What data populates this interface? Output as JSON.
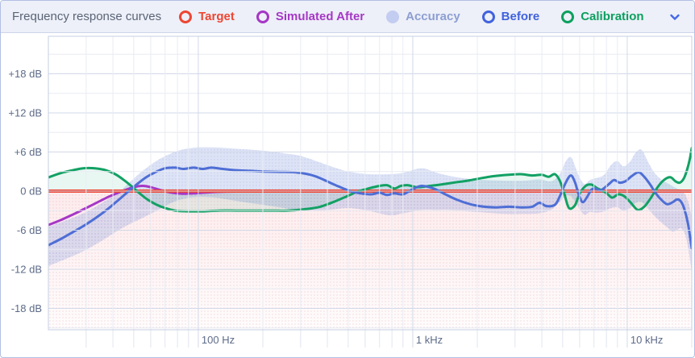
{
  "header": {
    "title": "Frequency response curves",
    "legend": {
      "items": [
        {
          "id": "target",
          "label": "Target",
          "color": "#ee4533",
          "marker": "ring"
        },
        {
          "id": "simulated-after",
          "label": "Simulated After",
          "color": "#a637c6",
          "marker": "ring"
        },
        {
          "id": "accuracy",
          "label": "Accuracy",
          "color": "#c3cdf1",
          "text_color": "#8d9ed2",
          "marker": "dot"
        },
        {
          "id": "before",
          "label": "Before",
          "color": "#4162de",
          "marker": "ring"
        },
        {
          "id": "calibration",
          "label": "Calibration",
          "color": "#0ca05f",
          "marker": "ring"
        }
      ]
    },
    "collapse_icon": "chevron-down",
    "collapse_icon_color": "#4468e8"
  },
  "chart_data": {
    "type": "line",
    "title": "Frequency response curves",
    "x_axis": {
      "scale": "log",
      "unit": "Hz",
      "min": 20,
      "max": 20000,
      "ticks": [
        {
          "hz": 100,
          "label": "100 Hz"
        },
        {
          "hz": 1000,
          "label": "1 kHz"
        },
        {
          "hz": 10000,
          "label": "10 kHz"
        }
      ],
      "grid_hz": [
        30,
        40,
        50,
        60,
        70,
        80,
        90,
        100,
        200,
        300,
        400,
        500,
        600,
        700,
        800,
        900,
        1000,
        2000,
        3000,
        4000,
        5000,
        6000,
        7000,
        8000,
        9000,
        10000,
        20000
      ]
    },
    "y_axis": {
      "unit": "dB",
      "min": -21.3,
      "max": 23.8,
      "grid_step_db": 3,
      "ticks": [
        {
          "db": 18,
          "label": "+18 dB"
        },
        {
          "db": 12,
          "label": "+12 dB"
        },
        {
          "db": 6,
          "label": "+6 dB"
        },
        {
          "db": 0,
          "label": "0 dB"
        },
        {
          "db": -6,
          "label": "-6 dB"
        },
        {
          "db": -12,
          "label": "-12 dB"
        },
        {
          "db": -18,
          "label": "-18 dB"
        }
      ]
    },
    "band": {
      "name": "Accuracy",
      "fill": "rgba(124,146,221,0.26)",
      "points": [
        [
          20,
          -11.5,
          -5.5
        ],
        [
          25,
          -10.2,
          -4.3
        ],
        [
          30,
          -9.0,
          -3.2
        ],
        [
          36,
          -7.5,
          -1.7
        ],
        [
          42,
          -6.1,
          -0.3
        ],
        [
          47,
          -5.2,
          1.1
        ],
        [
          55,
          -4.1,
          3.1
        ],
        [
          65,
          -2.9,
          4.8
        ],
        [
          75,
          -1.8,
          5.8
        ],
        [
          85,
          -1.2,
          6.4
        ],
        [
          100,
          -0.9,
          6.7
        ],
        [
          120,
          -1.0,
          6.7
        ],
        [
          150,
          -1.5,
          6.5
        ],
        [
          200,
          -2.1,
          6.2
        ],
        [
          250,
          -2.6,
          5.8
        ],
        [
          300,
          -3.0,
          5.4
        ],
        [
          400,
          -2.9,
          4.0
        ],
        [
          500,
          -2.6,
          3.0
        ],
        [
          620,
          -3.0,
          2.6
        ],
        [
          780,
          -3.7,
          2.6
        ],
        [
          900,
          -3.4,
          2.8
        ],
        [
          1100,
          -2.9,
          3.5
        ],
        [
          1300,
          -2.9,
          2.8
        ],
        [
          1500,
          -2.9,
          2.3
        ],
        [
          1800,
          -3.1,
          1.9
        ],
        [
          2200,
          -3.3,
          1.7
        ],
        [
          2700,
          -3.5,
          1.6
        ],
        [
          3300,
          -3.5,
          1.6
        ],
        [
          3900,
          -3.4,
          1.8
        ],
        [
          4400,
          -2.9,
          1.5
        ],
        [
          4800,
          -1.8,
          2.4
        ],
        [
          5200,
          -0.7,
          4.7
        ],
        [
          5500,
          -0.9,
          5.1
        ],
        [
          5900,
          -2.4,
          2.6
        ],
        [
          6300,
          -3.6,
          1.1
        ],
        [
          6700,
          -3.2,
          1.7
        ],
        [
          7200,
          -3.3,
          2.0
        ],
        [
          7800,
          -3.1,
          2.5
        ],
        [
          8400,
          -2.6,
          4.0
        ],
        [
          9000,
          -2.5,
          4.6
        ],
        [
          9600,
          -3.0,
          3.8
        ],
        [
          10300,
          -2.6,
          4.5
        ],
        [
          11000,
          -1.8,
          6.0
        ],
        [
          11700,
          -1.7,
          6.3
        ],
        [
          12500,
          -2.7,
          4.5
        ],
        [
          13400,
          -3.8,
          2.8
        ],
        [
          14400,
          -4.8,
          1.8
        ],
        [
          15400,
          -5.6,
          1.2
        ],
        [
          16200,
          -6.2,
          0.8
        ],
        [
          17000,
          -6.0,
          0.4
        ],
        [
          17800,
          -5.7,
          0.2
        ],
        [
          18600,
          -6.6,
          -0.5
        ],
        [
          19300,
          -9.0,
          -1.8
        ],
        [
          20000,
          -12.5,
          -4.0
        ]
      ]
    },
    "series": [
      {
        "name": "Simulated After",
        "color": "#a637c6",
        "width": 3,
        "points": [
          [
            20,
            -5.2
          ],
          [
            23,
            -4.4
          ],
          [
            26,
            -3.6
          ],
          [
            30,
            -2.6
          ],
          [
            34,
            -1.7
          ],
          [
            38,
            -0.9
          ],
          [
            42,
            -0.3
          ],
          [
            46,
            0.2
          ],
          [
            50,
            0.6
          ],
          [
            55,
            0.8
          ],
          [
            60,
            0.6
          ],
          [
            66,
            0.2
          ],
          [
            74,
            -0.2
          ],
          [
            84,
            -0.4
          ],
          [
            95,
            -0.35
          ],
          [
            110,
            -0.2
          ],
          [
            130,
            -0.1
          ],
          [
            160,
            -0.05
          ],
          [
            250,
            0
          ],
          [
            20000,
            0
          ]
        ]
      },
      {
        "name": "Target",
        "color": "#ee4533",
        "width": 4,
        "points": [
          [
            20,
            0
          ],
          [
            20000,
            0
          ]
        ]
      },
      {
        "name": "Calibration",
        "color": "#12a164",
        "width": 3,
        "points": [
          [
            20,
            2.1
          ],
          [
            23,
            2.8
          ],
          [
            26,
            3.2
          ],
          [
            29,
            3.5
          ],
          [
            33,
            3.5
          ],
          [
            37,
            3.2
          ],
          [
            41,
            2.6
          ],
          [
            45,
            1.7
          ],
          [
            49,
            0.7
          ],
          [
            53,
            -0.3
          ],
          [
            58,
            -1.3
          ],
          [
            64,
            -2.1
          ],
          [
            70,
            -2.6
          ],
          [
            78,
            -3.0
          ],
          [
            90,
            -3.1
          ],
          [
            105,
            -3.1
          ],
          [
            125,
            -3.0
          ],
          [
            150,
            -3.0
          ],
          [
            180,
            -3.0
          ],
          [
            220,
            -3.0
          ],
          [
            260,
            -3.0
          ],
          [
            310,
            -2.8
          ],
          [
            370,
            -2.4
          ],
          [
            440,
            -1.5
          ],
          [
            500,
            -0.7
          ],
          [
            550,
            -0.1
          ],
          [
            620,
            0.4
          ],
          [
            700,
            0.8
          ],
          [
            760,
            0.9
          ],
          [
            820,
            0.4
          ],
          [
            880,
            0.8
          ],
          [
            950,
            0.9
          ],
          [
            1050,
            0.6
          ],
          [
            1200,
            0.8
          ],
          [
            1350,
            1.0
          ],
          [
            1550,
            1.3
          ],
          [
            1800,
            1.6
          ],
          [
            2100,
            2.0
          ],
          [
            2400,
            2.3
          ],
          [
            2800,
            2.5
          ],
          [
            3200,
            2.6
          ],
          [
            3600,
            2.4
          ],
          [
            4000,
            2.5
          ],
          [
            4300,
            2.2
          ],
          [
            4600,
            2.6
          ],
          [
            4850,
            1.6
          ],
          [
            5100,
            -0.5
          ],
          [
            5350,
            -2.6
          ],
          [
            5700,
            -2.2
          ],
          [
            6000,
            -0.4
          ],
          [
            6400,
            0.8
          ],
          [
            6800,
            1.0
          ],
          [
            7200,
            0.5
          ],
          [
            7600,
            0.1
          ],
          [
            8000,
            -0.3
          ],
          [
            8500,
            -1.0
          ],
          [
            9100,
            -0.5
          ],
          [
            9700,
            -0.8
          ],
          [
            10400,
            -1.8
          ],
          [
            11200,
            -2.9
          ],
          [
            12000,
            -2.4
          ],
          [
            12800,
            -1.2
          ],
          [
            13600,
            0.2
          ],
          [
            14400,
            1.3
          ],
          [
            15300,
            2.0
          ],
          [
            16000,
            2.1
          ],
          [
            16800,
            1.5
          ],
          [
            17600,
            1.3
          ],
          [
            18400,
            2.0
          ],
          [
            19100,
            3.5
          ],
          [
            19600,
            5.0
          ],
          [
            20000,
            6.6
          ]
        ]
      },
      {
        "name": "Before",
        "color": "#4e6ed5",
        "width": 3,
        "points": [
          [
            20,
            -8.3
          ],
          [
            23,
            -7.3
          ],
          [
            26,
            -6.3
          ],
          [
            30,
            -5.1
          ],
          [
            34,
            -3.9
          ],
          [
            38,
            -2.7
          ],
          [
            42,
            -1.5
          ],
          [
            47,
            -0.1
          ],
          [
            52,
            1.1
          ],
          [
            57,
            2.1
          ],
          [
            63,
            2.9
          ],
          [
            70,
            3.5
          ],
          [
            78,
            3.6
          ],
          [
            85,
            3.4
          ],
          [
            95,
            3.6
          ],
          [
            105,
            3.4
          ],
          [
            115,
            3.6
          ],
          [
            130,
            3.4
          ],
          [
            150,
            3.2
          ],
          [
            175,
            3.1
          ],
          [
            200,
            3.0
          ],
          [
            240,
            2.95
          ],
          [
            290,
            2.85
          ],
          [
            350,
            2.3
          ],
          [
            430,
            1.0
          ],
          [
            510,
            0.0
          ],
          [
            570,
            -0.35
          ],
          [
            640,
            -0.5
          ],
          [
            700,
            -0.25
          ],
          [
            760,
            -0.6
          ],
          [
            820,
            -0.35
          ],
          [
            900,
            -0.5
          ],
          [
            1000,
            0.3
          ],
          [
            1100,
            0.8
          ],
          [
            1250,
            0.4
          ],
          [
            1400,
            -0.4
          ],
          [
            1600,
            -1.3
          ],
          [
            1850,
            -2.0
          ],
          [
            2100,
            -2.35
          ],
          [
            2450,
            -2.5
          ],
          [
            2800,
            -2.4
          ],
          [
            3200,
            -2.5
          ],
          [
            3600,
            -2.4
          ],
          [
            3900,
            -1.8
          ],
          [
            4200,
            -2.3
          ],
          [
            4600,
            -2.1
          ],
          [
            4850,
            -0.8
          ],
          [
            5150,
            1.2
          ],
          [
            5450,
            2.4
          ],
          [
            5700,
            1.4
          ],
          [
            5950,
            -0.6
          ],
          [
            6200,
            -1.7
          ],
          [
            6500,
            -0.9
          ],
          [
            6800,
            0.2
          ],
          [
            7100,
            0.4
          ],
          [
            7500,
            0.1
          ],
          [
            7900,
            0.6
          ],
          [
            8300,
            1.2
          ],
          [
            8700,
            1.7
          ],
          [
            9200,
            1.3
          ],
          [
            9800,
            1.5
          ],
          [
            10500,
            2.3
          ],
          [
            11300,
            2.9
          ],
          [
            12000,
            2.2
          ],
          [
            12800,
            1.0
          ],
          [
            13500,
            -0.2
          ],
          [
            14300,
            -1.2
          ],
          [
            15300,
            -2.0
          ],
          [
            16300,
            -1.7
          ],
          [
            17000,
            -1.3
          ],
          [
            17700,
            -1.5
          ],
          [
            18400,
            -2.6
          ],
          [
            19200,
            -5.0
          ],
          [
            20000,
            -8.8
          ]
        ]
      }
    ],
    "styles": {
      "grid_minor": "#e9ecf4",
      "grid_major": "#d2d9e8",
      "tick_minor": "#e2e6f0",
      "axis_label": "#5d6b89",
      "plot_border": "#c6cfe2",
      "target_fill_top": "rgba(240,100,110,0.13)",
      "target_fill_bottom": "rgba(240,100,110,0.02)",
      "calibration_fill": "rgba(16,163,106,0.09)",
      "band_dot": "#8fa0d4",
      "pink_dot": "#dfaab6"
    }
  }
}
